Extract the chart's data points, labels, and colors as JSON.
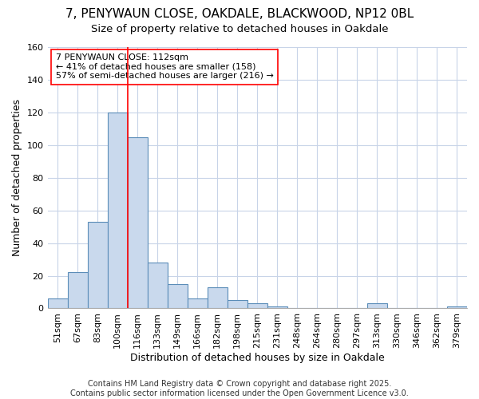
{
  "title1": "7, PENYWAUN CLOSE, OAKDALE, BLACKWOOD, NP12 0BL",
  "title2": "Size of property relative to detached houses in Oakdale",
  "xlabel": "Distribution of detached houses by size in Oakdale",
  "ylabel": "Number of detached properties",
  "bin_labels": [
    "51sqm",
    "67sqm",
    "83sqm",
    "100sqm",
    "116sqm",
    "133sqm",
    "149sqm",
    "166sqm",
    "182sqm",
    "198sqm",
    "215sqm",
    "231sqm",
    "248sqm",
    "264sqm",
    "280sqm",
    "297sqm",
    "313sqm",
    "330sqm",
    "346sqm",
    "362sqm",
    "379sqm"
  ],
  "bar_values": [
    6,
    22,
    53,
    120,
    105,
    28,
    15,
    6,
    13,
    5,
    3,
    1,
    0,
    0,
    0,
    0,
    3,
    0,
    0,
    0,
    1
  ],
  "bar_color": "#c9d9ed",
  "bar_edge_color": "#5b8db8",
  "grid_color": "#c8d4e8",
  "background_color": "#ffffff",
  "annotation_text": "7 PENYWAUN CLOSE: 112sqm\n← 41% of detached houses are smaller (158)\n57% of semi-detached houses are larger (216) →",
  "redline_x": 4.5,
  "ylim": [
    0,
    160
  ],
  "yticks": [
    0,
    20,
    40,
    60,
    80,
    100,
    120,
    140,
    160
  ],
  "footnote": "Contains HM Land Registry data © Crown copyright and database right 2025.\nContains public sector information licensed under the Open Government Licence v3.0.",
  "title_fontsize": 11,
  "subtitle_fontsize": 9.5,
  "axis_label_fontsize": 9,
  "tick_fontsize": 8,
  "annotation_fontsize": 8,
  "footnote_fontsize": 7
}
